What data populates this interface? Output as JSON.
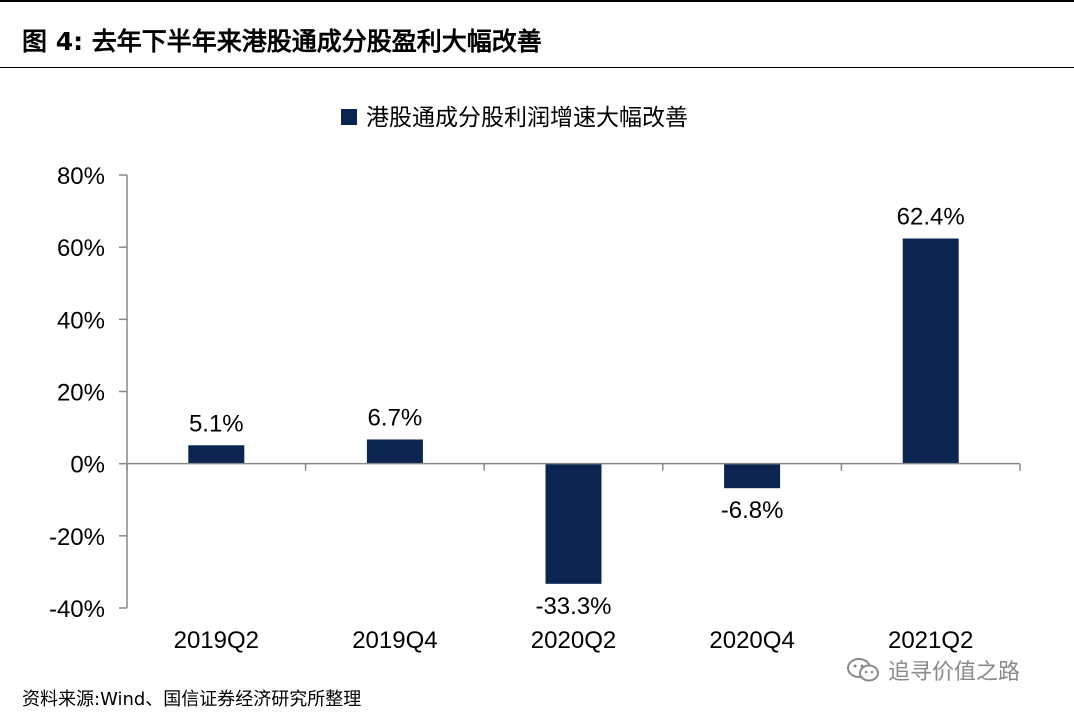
{
  "header": {
    "title": "图 4:  去年下半年来港股通成分股盈利大幅改善"
  },
  "source": "资料来源:Wind、国信证券经济研究所整理",
  "watermark": {
    "text": "追寻价值之路",
    "icon": "wechat-icon"
  },
  "colors": {
    "bar": "#0b2450",
    "axis": "#888888"
  },
  "chart_data": {
    "type": "bar",
    "categories": [
      "2019Q2",
      "2019Q4",
      "2020Q2",
      "2020Q4",
      "2021Q2"
    ],
    "series": [
      {
        "name": "港股通成分股利润增速大幅改善",
        "values": [
          5.1,
          6.7,
          -33.3,
          -6.8,
          62.4
        ],
        "labels": [
          "5.1%",
          "6.7%",
          "-33.3%",
          "-6.8%",
          "62.4%"
        ]
      }
    ],
    "ylim": [
      -40,
      80
    ],
    "yticks": [
      80,
      60,
      40,
      20,
      0,
      -20,
      -40
    ],
    "ytick_labels": [
      "80%",
      "60%",
      "40%",
      "20%",
      "0%",
      "-20%",
      "-40%"
    ],
    "title": "",
    "xlabel": "",
    "ylabel": "",
    "legend": "top-center",
    "grid": false
  }
}
